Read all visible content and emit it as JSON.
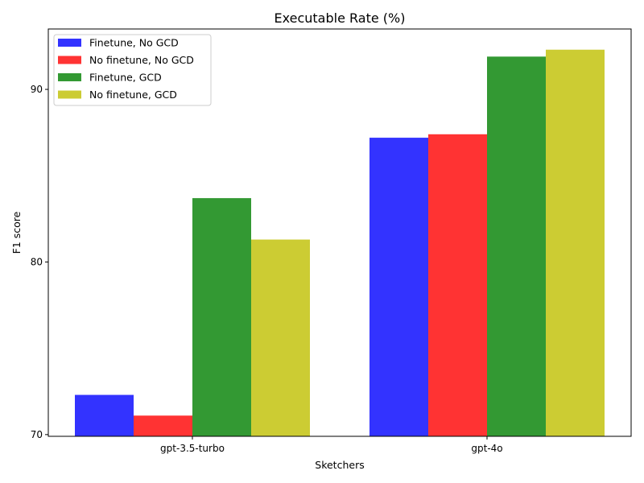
{
  "chart_data": {
    "type": "bar",
    "title": "Executable Rate (%)",
    "xlabel": "Sketchers",
    "ylabel": "F1 score",
    "categories": [
      "gpt-3.5-turbo",
      "gpt-4o"
    ],
    "series": [
      {
        "name": "Finetune, No GCD",
        "color": "#3333ff",
        "values": [
          72.3,
          87.2
        ]
      },
      {
        "name": "No finetune, No GCD",
        "color": "#ff3333",
        "values": [
          71.1,
          87.4
        ]
      },
      {
        "name": "Finetune, GCD",
        "color": "#339933",
        "values": [
          83.7,
          91.9
        ]
      },
      {
        "name": "No finetune, GCD",
        "color": "#cccc33",
        "values": [
          81.3,
          92.3
        ]
      }
    ],
    "ylim": [
      69.9,
      93.5
    ],
    "yticks": [
      70,
      80,
      90
    ],
    "legend_position": "top-left",
    "grid": false
  }
}
